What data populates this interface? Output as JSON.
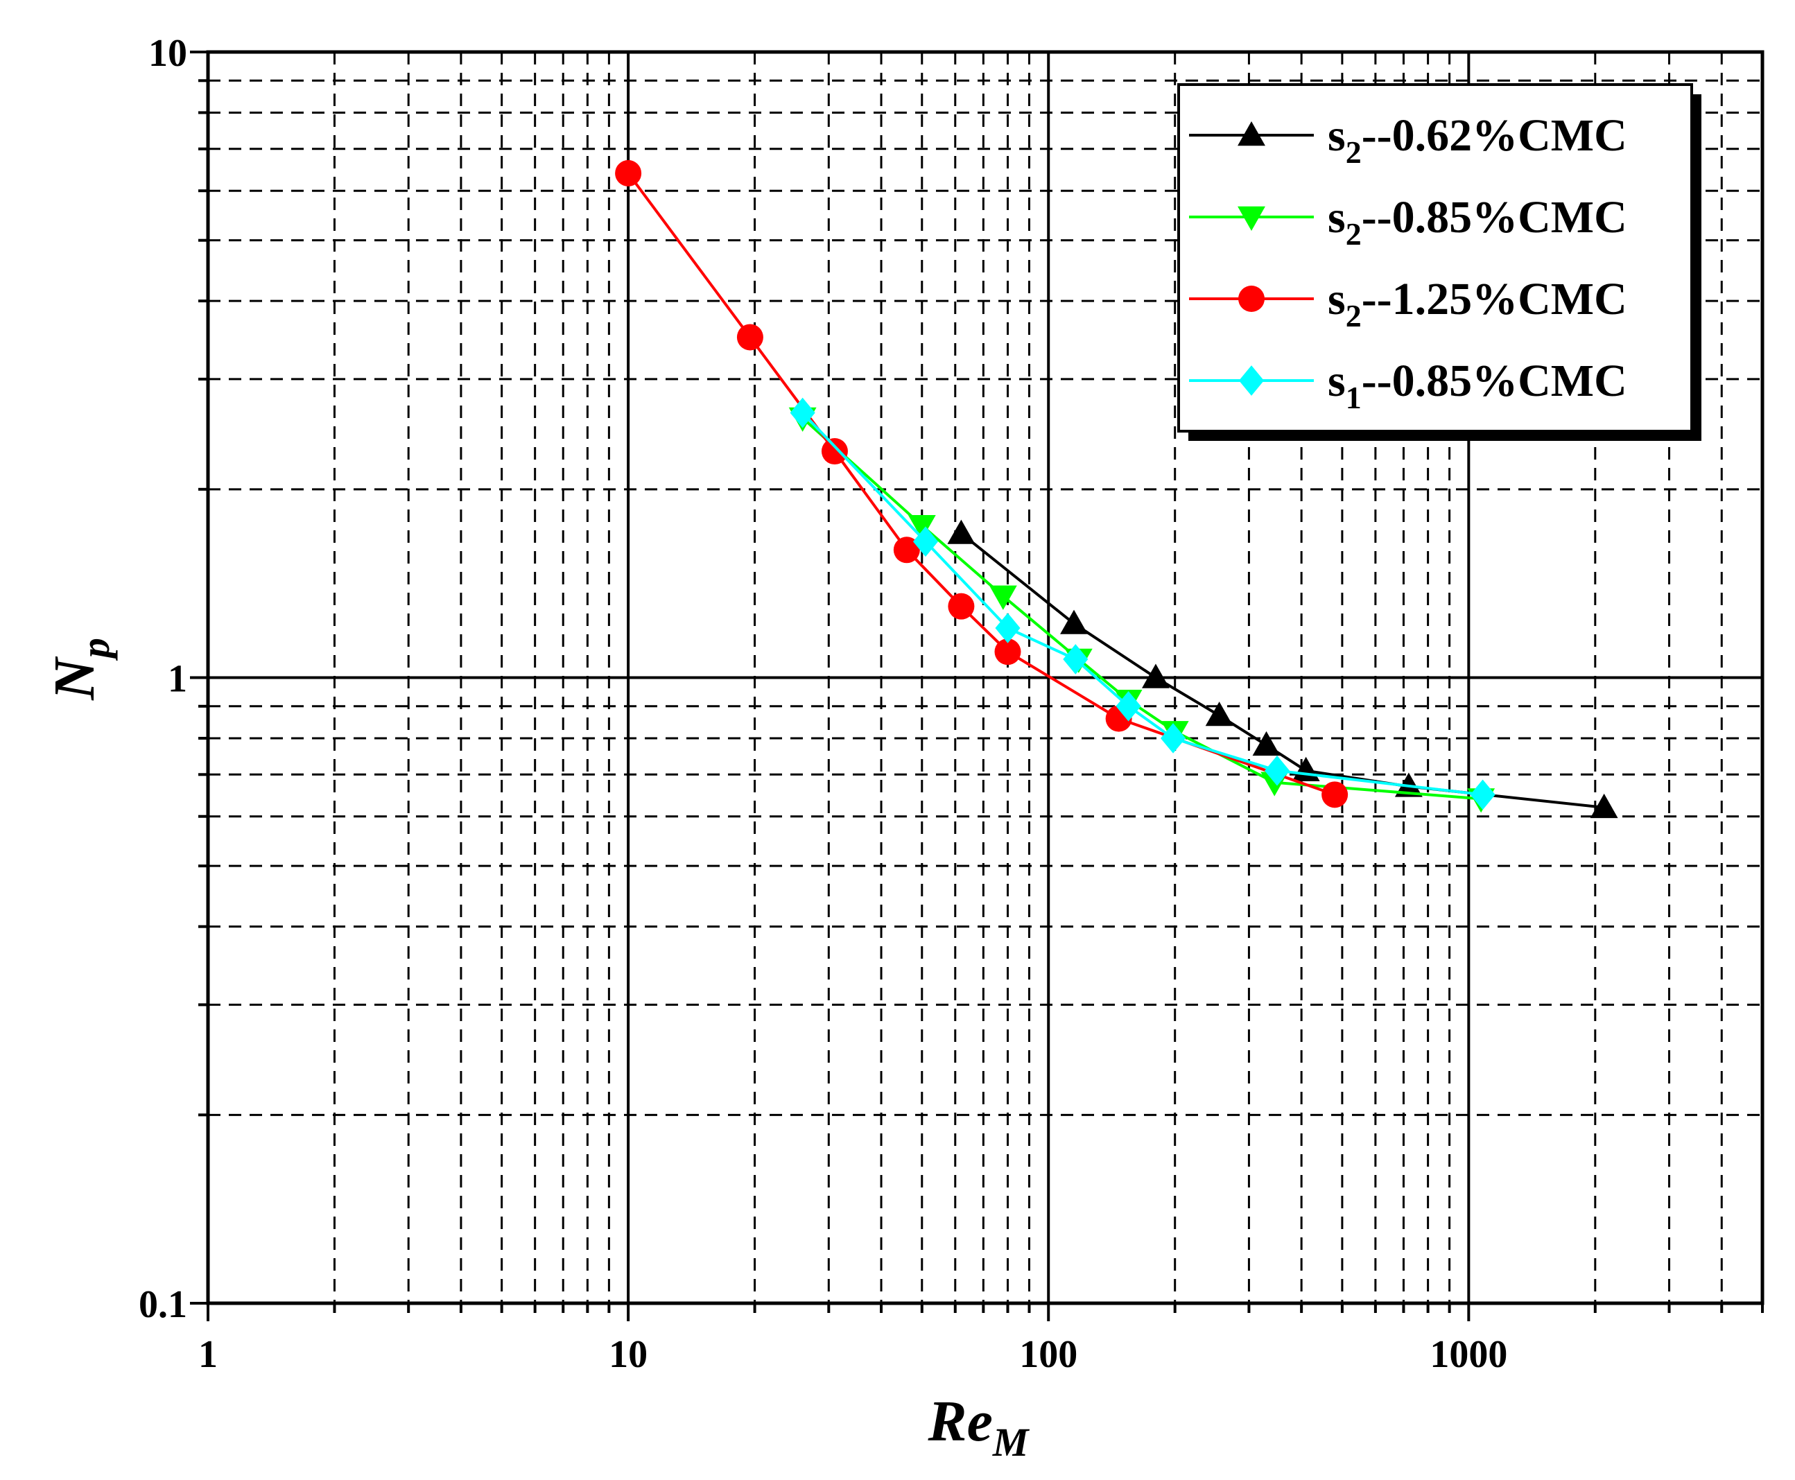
{
  "chart_data": {
    "type": "line",
    "title": "",
    "xlabel": {
      "main": "Re",
      "sub": "M"
    },
    "ylabel": {
      "main": "N",
      "sub": "p"
    },
    "xscale": "log",
    "yscale": "log",
    "xlim": [
      1,
      5000
    ],
    "ylim": [
      0.1,
      10
    ],
    "x_ticks": [
      1,
      10,
      100,
      1000
    ],
    "x_tick_labels": [
      "1",
      "10",
      "100",
      "1000"
    ],
    "y_ticks": [
      0.1,
      1,
      10
    ],
    "y_tick_labels": [
      "0.1",
      "1",
      "10"
    ],
    "grid": {
      "major": "solid",
      "minor": "dashed"
    },
    "legend_position": "top-right",
    "series": [
      {
        "name": "s2--0.62%CMC",
        "label_main": "s",
        "label_sub": "2",
        "label_rest": "--0.62%CMC",
        "color": "#000000",
        "marker": "triangle-up",
        "x": [
          62,
          115,
          180,
          255,
          330,
          410,
          720,
          2100
        ],
        "y": [
          1.7,
          1.22,
          1.0,
          0.87,
          0.78,
          0.71,
          0.67,
          0.62
        ]
      },
      {
        "name": "s2--0.85%CMC",
        "label_main": "s",
        "label_sub": "2",
        "label_rest": "--0.85%CMC",
        "color": "#00ff00",
        "marker": "triangle-down",
        "x": [
          26,
          50,
          78,
          118,
          155,
          200,
          345,
          1070
        ],
        "y": [
          2.6,
          1.75,
          1.35,
          1.07,
          0.92,
          0.82,
          0.68,
          0.64
        ]
      },
      {
        "name": "s2--1.25%CMC",
        "label_main": "s",
        "label_sub": "2",
        "label_rest": "--1.25%CMC",
        "color": "#ff0000",
        "marker": "circle",
        "x": [
          10,
          19.5,
          31,
          46,
          62,
          80,
          147,
          480
        ],
        "y": [
          6.4,
          3.5,
          2.3,
          1.6,
          1.3,
          1.1,
          0.86,
          0.65
        ]
      },
      {
        "name": "s1--0.85%CMC",
        "label_main": "s",
        "label_sub": "1",
        "label_rest": "--0.85%CMC",
        "color": "#00ffff",
        "marker": "diamond",
        "x": [
          26,
          51,
          80,
          116,
          155,
          198,
          350,
          1080
        ],
        "y": [
          2.65,
          1.65,
          1.2,
          1.07,
          0.9,
          0.8,
          0.71,
          0.65
        ]
      }
    ]
  }
}
